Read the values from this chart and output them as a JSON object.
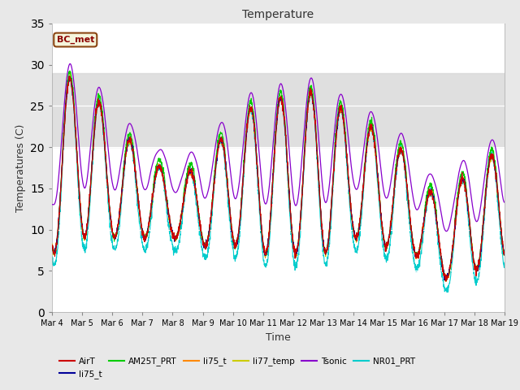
{
  "title": "Temperature",
  "xlabel": "Time",
  "ylabel": "Temperatures (C)",
  "ylim": [
    0,
    35
  ],
  "xlim": [
    0,
    15
  ],
  "xtick_labels": [
    "Mar 4",
    "Mar 5",
    "Mar 6",
    "Mar 7",
    "Mar 8",
    "Mar 9",
    "Mar 10",
    "Mar 11",
    "Mar 12",
    "Mar 13",
    "Mar 14",
    "Mar 15",
    "Mar 16",
    "Mar 17",
    "Mar 18",
    "Mar 19"
  ],
  "xtick_positions": [
    0,
    1,
    2,
    3,
    4,
    5,
    6,
    7,
    8,
    9,
    10,
    11,
    12,
    13,
    14,
    15
  ],
  "fig_bg_color": "#e8e8e8",
  "plot_bg_color": "#ffffff",
  "shade_band_low": 20,
  "shade_band_high": 29,
  "shade_color": "#d8d8d8",
  "annotation_text": "BC_met",
  "annotation_color": "#8B0000",
  "annotation_bg": "#f5f5dc",
  "annotation_edge": "#8B4513",
  "colors": {
    "AirT": "#cc0000",
    "li75_blue": "#000099",
    "AM25T_PRT": "#00cc00",
    "li75_orange": "#ff8800",
    "li77_temp": "#cccc00",
    "Tsonic": "#8800cc",
    "NR01_PRT": "#00cccc"
  },
  "legend_labels": [
    "AirT",
    "li75_t",
    "AM25T_PRT",
    "li75_t",
    "li77_temp",
    "Tsonic",
    "NR01_PRT"
  ],
  "legend_colors": [
    "#cc0000",
    "#000099",
    "#00cc00",
    "#ff8800",
    "#cccc00",
    "#8800cc",
    "#00cccc"
  ]
}
